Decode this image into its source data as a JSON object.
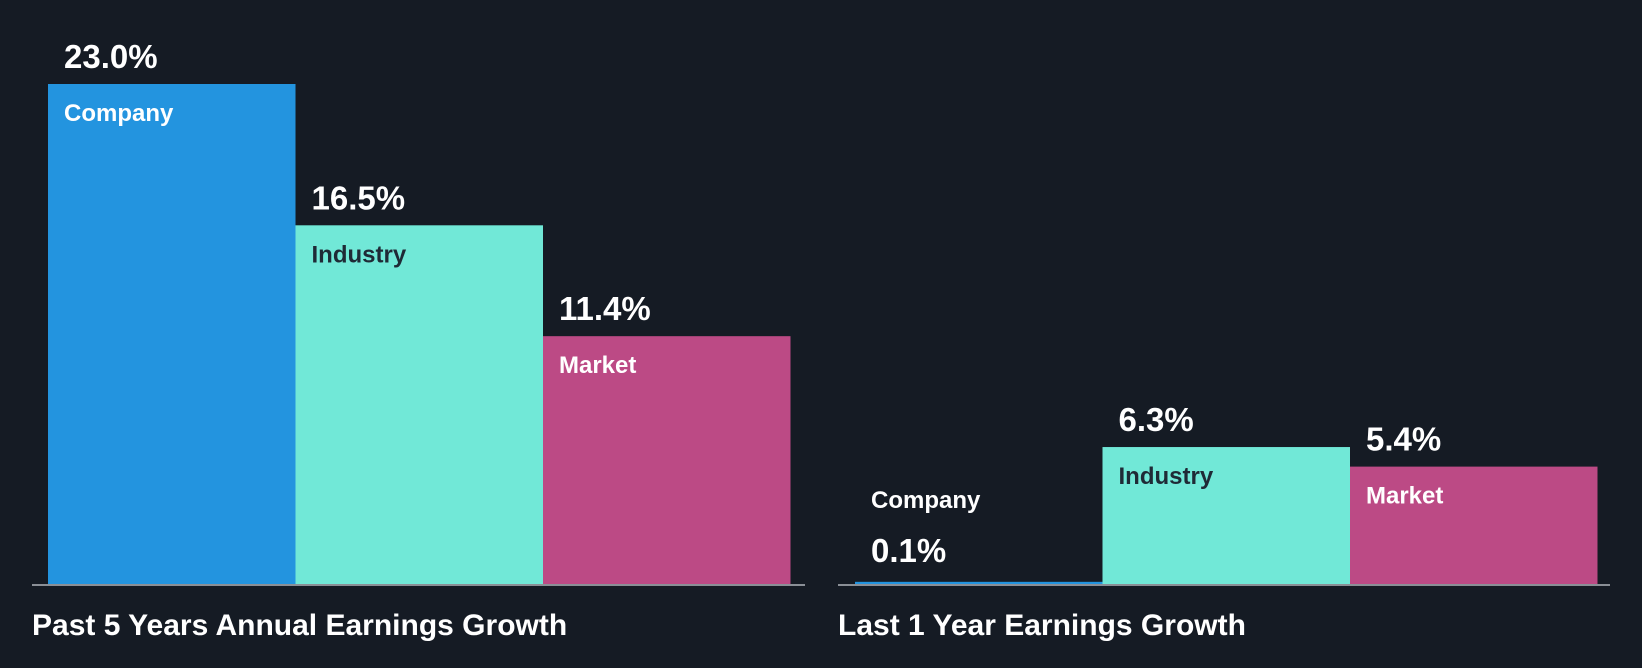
{
  "colors": {
    "background": "#151b24",
    "company": "#2394df",
    "industry": "#71e8d7",
    "market": "#bc4a85",
    "axis": "#8a8f96",
    "value_text": "#ffffff",
    "label_dark": "#1f2a36",
    "label_light": "#ffffff",
    "title_text": "#ffffff"
  },
  "chart_data": [
    {
      "type": "bar",
      "title": "Past 5 Years Annual Earnings Growth",
      "categories": [
        "Company",
        "Industry",
        "Market"
      ],
      "values": [
        23.0,
        16.5,
        11.4
      ],
      "value_labels": [
        "23.0%",
        "16.5%",
        "11.4%"
      ],
      "ylim": [
        0,
        23.0
      ],
      "unit": "%",
      "grid": false,
      "legend": "none"
    },
    {
      "type": "bar",
      "title": "Last 1 Year Earnings Growth",
      "categories": [
        "Company",
        "Industry",
        "Market"
      ],
      "values": [
        0.1,
        6.3,
        5.4
      ],
      "value_labels": [
        "0.1%",
        "6.3%",
        "5.4%"
      ],
      "ylim": [
        0,
        23.0
      ],
      "unit": "%",
      "grid": false,
      "legend": "none"
    }
  ]
}
